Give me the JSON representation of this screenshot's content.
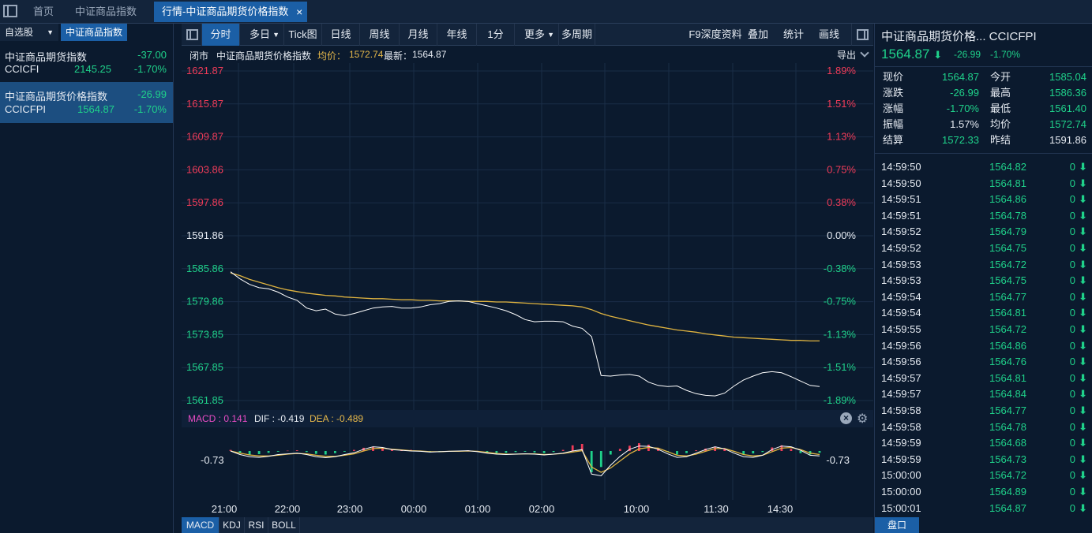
{
  "tabs": {
    "icon": "window-icon",
    "home": "首页",
    "idx": "中证商品指数",
    "active": "行情-中证商品期货价格指数",
    "close": "×"
  },
  "left": {
    "tab_watch": "自选股",
    "tab_watch_arrow": "▼",
    "tab_index": "中证商品指数",
    "items": [
      {
        "name": "中证商品期货指数",
        "change": "-37.00",
        "code": "CCICFI",
        "price": "2145.25",
        "pct": "-1.70%"
      },
      {
        "name": "中证商品期货价格指数",
        "change": "-26.99",
        "code": "CCICFPI",
        "price": "1564.87",
        "pct": "-1.70%"
      }
    ]
  },
  "toolbar": {
    "items": [
      "分时",
      "多日",
      "Tick图",
      "日线",
      "周线",
      "月线",
      "年线",
      "1分",
      "更多",
      "多周期"
    ],
    "dropdown": "▼",
    "right": [
      "F9深度资料",
      "叠加",
      "统计",
      "画线"
    ]
  },
  "info": {
    "status": "闭市",
    "name": "中证商品期货价格指数",
    "avg_label": "均价：",
    "avg": "1572.74",
    "last_label": "最新：",
    "last": "1564.87",
    "export": "导出"
  },
  "chart_data": {
    "type": "line",
    "yticks": [
      "1621.87",
      "1615.87",
      "1609.87",
      "1603.86",
      "1597.86",
      "1591.86",
      "1585.86",
      "1579.86",
      "1573.85",
      "1567.85",
      "1561.85"
    ],
    "pticks": [
      "1.89%",
      "1.51%",
      "1.13%",
      "0.75%",
      "0.38%",
      "0.00%",
      "-0.38%",
      "-0.75%",
      "-1.13%",
      "-1.51%",
      "-1.89%"
    ],
    "ylim": [
      1561.85,
      1621.87
    ],
    "xticks": [
      "21:00",
      "22:00",
      "23:00",
      "00:00",
      "01:00",
      "02:00",
      "10:00",
      "11:30",
      "14:30"
    ],
    "price": [
      1585.3,
      1584.0,
      1583.0,
      1582.4,
      1582.2,
      1581.6,
      1580.7,
      1580.1,
      1578.7,
      1578.2,
      1578.5,
      1577.6,
      1577.3,
      1577.7,
      1578.2,
      1578.7,
      1578.9,
      1579.0,
      1578.7,
      1578.7,
      1578.9,
      1579.3,
      1579.5,
      1579.9,
      1580.0,
      1579.9,
      1579.5,
      1579.1,
      1578.7,
      1578.2,
      1577.5,
      1576.6,
      1576.2,
      1576.3,
      1576.3,
      1576.2,
      1575.4,
      1575.0,
      1573.5,
      1566.4,
      1566.3,
      1566.5,
      1566.6,
      1566.3,
      1565.2,
      1564.6,
      1564.4,
      1564.5,
      1563.7,
      1563.1,
      1562.8,
      1562.7,
      1563.2,
      1564.5,
      1565.6,
      1566.3,
      1566.9,
      1567.1,
      1566.9,
      1566.2,
      1565.4,
      1564.6,
      1564.4
    ],
    "avg": [
      1585.1,
      1584.6,
      1583.9,
      1583.4,
      1582.9,
      1582.4,
      1582.0,
      1581.7,
      1581.4,
      1581.2,
      1581.0,
      1580.9,
      1580.7,
      1580.6,
      1580.5,
      1580.4,
      1580.4,
      1580.3,
      1580.2,
      1580.2,
      1580.1,
      1580.1,
      1580.0,
      1580.0,
      1580.0,
      1579.9,
      1579.9,
      1579.9,
      1579.8,
      1579.8,
      1579.7,
      1579.6,
      1579.5,
      1579.4,
      1579.3,
      1579.2,
      1579.1,
      1578.9,
      1578.4,
      1577.7,
      1577.2,
      1576.8,
      1576.4,
      1576.0,
      1575.6,
      1575.3,
      1575.0,
      1574.7,
      1574.5,
      1574.3,
      1574.0,
      1573.8,
      1573.6,
      1573.4,
      1573.3,
      1573.2,
      1573.1,
      1573.0,
      1572.9,
      1572.8,
      1572.8,
      1572.7,
      1572.7
    ],
    "macd_label": "MACD",
    "macd": "0.141",
    "dif_label": "DIF",
    "dif": "-0.419",
    "dea_label": "DEA",
    "dea": "-0.489",
    "macd_level": "-0.73",
    "hist": [
      0.3,
      -0.5,
      -1.0,
      -0.9,
      -0.5,
      -0.2,
      0.1,
      0.2,
      -0.3,
      -0.8,
      -1.0,
      -0.6,
      -0.2,
      0.3,
      0.9,
      1.2,
      0.9,
      0.4,
      0.2,
      0.3,
      0.1,
      -0.2,
      -0.3,
      -0.1,
      0.1,
      0.2,
      -0.1,
      -0.4,
      -0.6,
      -0.5,
      -0.3,
      -0.2,
      -0.4,
      -0.6,
      -0.3,
      0.3,
      1.6,
      2.0,
      -6.0,
      -4.5,
      -1.0,
      0.6,
      1.5,
      2.2,
      1.8,
      0.9,
      -0.3,
      -1.0,
      -0.6,
      0.2,
      0.7,
      1.2,
      0.6,
      -0.2,
      -0.9,
      -0.7,
      -0.3,
      1.0,
      1.6,
      0.6,
      -0.6,
      -1.0,
      -0.5
    ],
    "dif_line": [
      0.0,
      -1.0,
      -1.6,
      -1.8,
      -1.5,
      -1.0,
      -0.8,
      -0.6,
      -1.0,
      -1.6,
      -1.9,
      -1.6,
      -1.0,
      -0.5,
      0.5,
      1.2,
      1.0,
      0.4,
      0.2,
      0.0,
      -0.1,
      -0.3,
      -0.2,
      -0.1,
      0.0,
      0.1,
      -0.2,
      -0.6,
      -0.9,
      -1.0,
      -0.9,
      -0.8,
      -0.9,
      -1.1,
      -0.9,
      -0.6,
      0.0,
      0.4,
      -6.5,
      -7.0,
      -4.0,
      -1.5,
      0.5,
      1.4,
      1.3,
      0.5,
      -0.8,
      -1.8,
      -1.6,
      -0.6,
      0.4,
      1.2,
      0.6,
      -0.6,
      -1.6,
      -1.8,
      -1.2,
      0.4,
      1.4,
      1.2,
      0.2,
      -1.2,
      -1.4
    ],
    "dea_line": [
      0.0,
      -0.6,
      -1.1,
      -1.4,
      -1.4,
      -1.2,
      -0.9,
      -0.7,
      -0.8,
      -1.2,
      -1.5,
      -1.5,
      -1.2,
      -0.8,
      0.0,
      0.7,
      0.8,
      0.5,
      0.3,
      0.1,
      0.0,
      -0.2,
      -0.2,
      -0.1,
      -0.1,
      0.0,
      -0.1,
      -0.4,
      -0.7,
      -0.9,
      -0.9,
      -0.8,
      -0.8,
      -1.0,
      -0.9,
      -0.7,
      -0.3,
      0.1,
      -4.5,
      -6.0,
      -4.8,
      -2.8,
      -0.8,
      0.6,
      1.0,
      0.8,
      -0.2,
      -1.2,
      -1.4,
      -0.9,
      -0.1,
      0.7,
      0.7,
      -0.1,
      -1.0,
      -1.4,
      -1.2,
      -0.2,
      0.8,
      1.0,
      0.4,
      -0.6,
      -1.0
    ]
  },
  "bottom": {
    "tabs": [
      "MACD",
      "KDJ",
      "RSI",
      "BOLL"
    ]
  },
  "right": {
    "title": "中证商品期货价格... CCICFPI",
    "price": "1564.87",
    "arrow": "⬇",
    "chg": "-26.99",
    "pct": "-1.70%",
    "quote": [
      {
        "l1": "现价",
        "v1": "1564.87",
        "c1": "green",
        "l2": "今开",
        "v2": "1585.04",
        "c2": "green"
      },
      {
        "l1": "涨跌",
        "v1": "-26.99",
        "c1": "green",
        "l2": "最高",
        "v2": "1586.36",
        "c2": "green"
      },
      {
        "l1": "涨幅",
        "v1": "-1.70%",
        "c1": "green",
        "l2": "最低",
        "v2": "1561.40",
        "c2": "green"
      },
      {
        "l1": "振幅",
        "v1": "1.57%",
        "c1": "white",
        "l2": "均价",
        "v2": "1572.74",
        "c2": "green"
      },
      {
        "l1": "结算",
        "v1": "1572.33",
        "c1": "green",
        "l2": "昨结",
        "v2": "1591.86",
        "c2": "white"
      }
    ],
    "ticks": [
      {
        "t": "14:59:50",
        "p": "1564.82",
        "v": "0"
      },
      {
        "t": "14:59:50",
        "p": "1564.81",
        "v": "0"
      },
      {
        "t": "14:59:51",
        "p": "1564.86",
        "v": "0"
      },
      {
        "t": "14:59:51",
        "p": "1564.78",
        "v": "0"
      },
      {
        "t": "14:59:52",
        "p": "1564.79",
        "v": "0"
      },
      {
        "t": "14:59:52",
        "p": "1564.75",
        "v": "0"
      },
      {
        "t": "14:59:53",
        "p": "1564.72",
        "v": "0"
      },
      {
        "t": "14:59:53",
        "p": "1564.75",
        "v": "0"
      },
      {
        "t": "14:59:54",
        "p": "1564.77",
        "v": "0"
      },
      {
        "t": "14:59:54",
        "p": "1564.81",
        "v": "0"
      },
      {
        "t": "14:59:55",
        "p": "1564.72",
        "v": "0"
      },
      {
        "t": "14:59:56",
        "p": "1564.86",
        "v": "0"
      },
      {
        "t": "14:59:56",
        "p": "1564.76",
        "v": "0"
      },
      {
        "t": "14:59:57",
        "p": "1564.81",
        "v": "0"
      },
      {
        "t": "14:59:57",
        "p": "1564.84",
        "v": "0"
      },
      {
        "t": "14:59:58",
        "p": "1564.77",
        "v": "0"
      },
      {
        "t": "14:59:58",
        "p": "1564.78",
        "v": "0"
      },
      {
        "t": "14:59:59",
        "p": "1564.68",
        "v": "0"
      },
      {
        "t": "14:59:59",
        "p": "1564.73",
        "v": "0"
      },
      {
        "t": "15:00:00",
        "p": "1564.72",
        "v": "0"
      },
      {
        "t": "15:00:00",
        "p": "1564.89",
        "v": "0"
      },
      {
        "t": "15:00:01",
        "p": "1564.87",
        "v": "0"
      }
    ],
    "tick_arrow": "⬇",
    "bottom_tab": "盘口"
  }
}
